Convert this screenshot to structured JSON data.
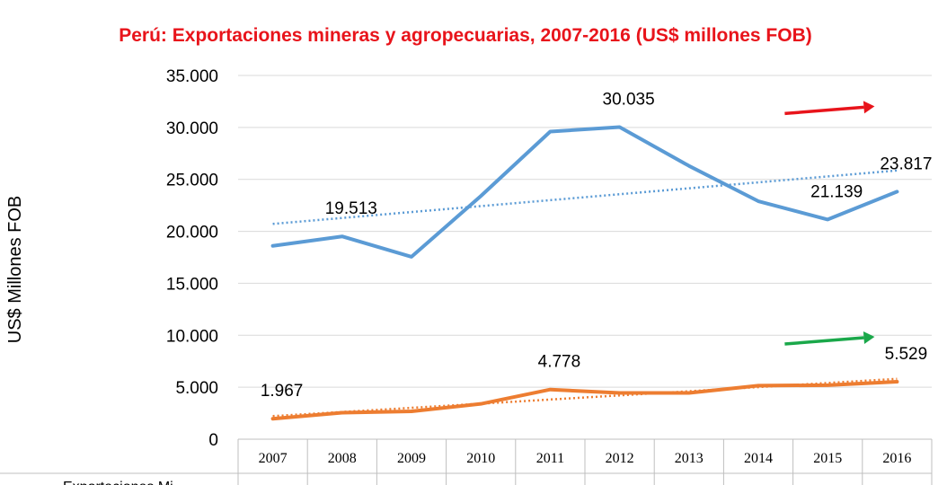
{
  "chart_data": {
    "type": "line",
    "title": "Perú: Exportaciones mineras y agropecuarias, 2007-2016 (US$ millones FOB)",
    "ylabel": "US$ Millones FOB",
    "xlabel": "",
    "ylim": [
      0,
      35000
    ],
    "yticks": [
      0,
      5000,
      10000,
      15000,
      20000,
      25000,
      30000,
      35000
    ],
    "ytick_labels": [
      "0",
      "5.000",
      "10.000",
      "15.000",
      "20.000",
      "25.000",
      "30.000",
      "35.000"
    ],
    "categories": [
      "2007",
      "2008",
      "2009",
      "2010",
      "2011",
      "2012",
      "2013",
      "2014",
      "2015",
      "2016"
    ],
    "grid": true,
    "series": [
      {
        "values": [
          18600,
          19513,
          17550,
          23400,
          29600,
          30035,
          26300,
          22900,
          21139,
          23817
        ],
        "color": "#5b9bd5",
        "trendline": true,
        "trend_arrow_color": "#e8141b",
        "data_labels": [
          {
            "index": 1,
            "text": "19.513"
          },
          {
            "index": 5,
            "text": "30.035"
          },
          {
            "index": 8,
            "text": "21.139"
          },
          {
            "index": 9,
            "text": "23.817"
          }
        ]
      },
      {
        "values": [
          1967,
          2550,
          2680,
          3400,
          4778,
          4450,
          4450,
          5150,
          5200,
          5529
        ],
        "color": "#ed7d31",
        "trendline": true,
        "trend_arrow_color": "#1aa84a",
        "data_labels": [
          {
            "index": 0,
            "text": "1.967"
          },
          {
            "index": 4,
            "text": "4.778"
          },
          {
            "index": 9,
            "text": "5.529"
          }
        ]
      }
    ],
    "table_row_label_partial": "Exportaciones Mi"
  }
}
